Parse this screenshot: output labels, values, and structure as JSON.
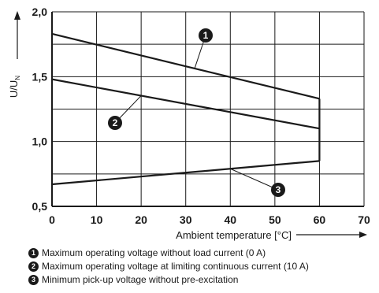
{
  "chart_data": {
    "type": "line",
    "xlabel": "Ambient temperature [°C]",
    "ylabel_main": "U/U",
    "ylabel_sub": "N",
    "xlim": [
      0,
      70
    ],
    "ylim": [
      0.5,
      2.0
    ],
    "xticks": [
      "0",
      "10",
      "20",
      "30",
      "40",
      "50",
      "60",
      "70"
    ],
    "yticks": [
      "0,5",
      "1,0",
      "1,5",
      "2,0"
    ],
    "grid": true,
    "series": [
      {
        "name": "1",
        "x": [
          0,
          60
        ],
        "y": [
          1.83,
          1.33
        ]
      },
      {
        "name": "2",
        "x": [
          0,
          60
        ],
        "y": [
          1.48,
          1.1
        ]
      },
      {
        "name": "3",
        "x": [
          0,
          60
        ],
        "y": [
          0.67,
          0.85
        ]
      }
    ],
    "legend": [
      {
        "badge": "1",
        "text": "Maximum operating voltage without load current (0 A)"
      },
      {
        "badge": "2",
        "text": "Maximum operating voltage at limiting continuous current (10 A)"
      },
      {
        "badge": "3",
        "text": "Minimum pick-up voltage without pre-excitation"
      }
    ]
  }
}
